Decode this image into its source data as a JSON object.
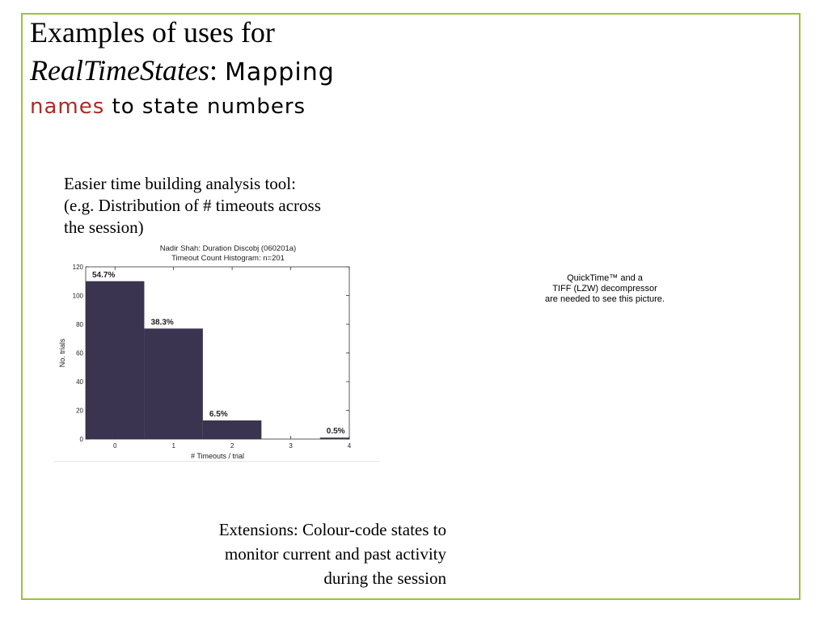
{
  "slide": {
    "title_line1": "Examples of uses for",
    "title_line2_italic": "RealTimeStates",
    "title_line2_colon": ":",
    "title_line2_script": "Mapping",
    "title_line3_highlight": "names",
    "title_line3_rest": " to state numbers",
    "intro_line1": "Easier time building analysis tool:",
    "intro_line2": "(e.g. Distribution of # timeouts across",
    "intro_line3": "the session)",
    "placeholder_line1": "QuickTime™ and a",
    "placeholder_line2": "TIFF (LZW) decompressor",
    "placeholder_line3": "are needed to see this picture.",
    "ext_line1": "Extensions: Colour-code states to",
    "ext_line2": "monitor current and past activity",
    "ext_line3": "during the session",
    "colors": {
      "frame": "#9bc23a",
      "highlight": "#b02a20",
      "bar": "#3a3450"
    }
  },
  "chart_data": {
    "type": "bar",
    "title": "Nadir Shah: Duration Discobj (060201a)",
    "subtitle": "Timeout Count Histogram: n=201",
    "xlabel": "# Timeouts / trial",
    "ylabel": "No. trials",
    "categories": [
      "0",
      "1",
      "2",
      "3",
      "4"
    ],
    "values": [
      110,
      77,
      13,
      0,
      1
    ],
    "data_labels": [
      "54.7%",
      "38.3%",
      "6.5%",
      "",
      "0.5%"
    ],
    "xlim": [
      -0.5,
      4
    ],
    "ylim": [
      0,
      120
    ],
    "xticks": [
      "0",
      "1",
      "2",
      "3",
      "4"
    ],
    "yticks": [
      "0",
      "20",
      "40",
      "60",
      "80",
      "100",
      "120"
    ],
    "bar_color": "#3a3450",
    "grid": false
  }
}
